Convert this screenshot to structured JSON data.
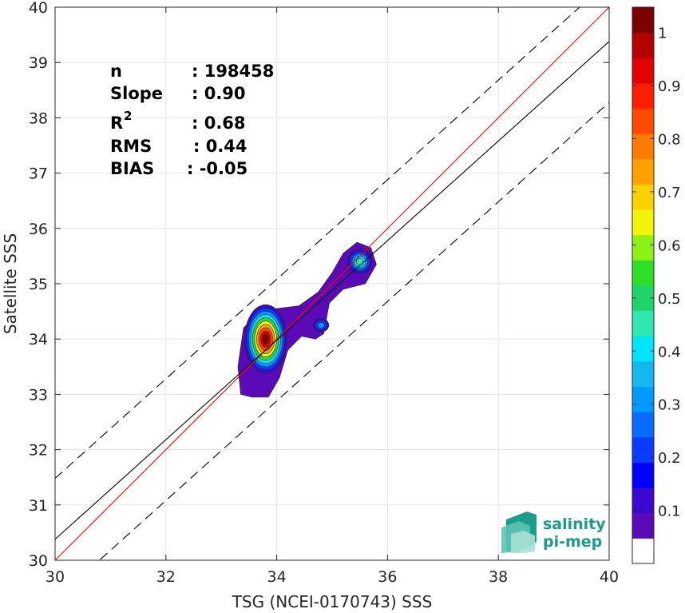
{
  "chart_data": {
    "type": "heatmap",
    "subtype": "density-scatter-contour",
    "xlabel": "TSG (NCEI-0170743) SSS",
    "ylabel": "Satellite SSS",
    "xlim": [
      30,
      40
    ],
    "ylim": [
      30,
      40
    ],
    "x_ticks": [
      30,
      32,
      34,
      36,
      38,
      40
    ],
    "y_ticks": [
      30,
      31,
      32,
      33,
      34,
      35,
      36,
      37,
      38,
      39,
      40
    ],
    "grid": true,
    "stats": {
      "n_label": "n",
      "n_value": ": 198458",
      "slope_label": "Slope",
      "slope_value": ": 0.90",
      "r2_label": "R",
      "r2_exp": "2",
      "r2_value": ": 0.68",
      "rms_label": "RMS",
      "rms_value": ": 0.44",
      "bias_label": "BIAS",
      "bias_value": ": -0.05"
    },
    "lines": [
      {
        "kind": "identity",
        "color": "#ff0000",
        "slope": 1.0,
        "intercept": 0.0
      },
      {
        "kind": "regression",
        "color": "#000000",
        "slope": 0.9,
        "intercept": 3.38
      },
      {
        "kind": "upper-bound-dashed",
        "color": "#000000",
        "slope": 0.9,
        "intercept": 4.48
      },
      {
        "kind": "lower-bound-dashed",
        "color": "#000000",
        "slope": 0.9,
        "intercept": 2.28
      }
    ],
    "density_peaks": [
      {
        "x": 33.8,
        "y": 34.0,
        "level": 1.0
      },
      {
        "x": 35.5,
        "y": 35.4,
        "level": 0.45
      },
      {
        "x": 34.8,
        "y": 34.25,
        "level": 0.3
      }
    ],
    "colorbar": {
      "ticks": [
        "0.1",
        "0.2",
        "0.3",
        "0.4",
        "0.5",
        "0.6",
        "0.7",
        "0.8",
        "0.9",
        "1"
      ],
      "colors": [
        "#ffffff",
        "#5b0ab8",
        "#3a08d0",
        "#0000ff",
        "#0a3cff",
        "#0a6cff",
        "#0099ff",
        "#15b8ee",
        "#00e5ff",
        "#2ee8b0",
        "#1fd46b",
        "#2fde2a",
        "#8ef014",
        "#f2f20a",
        "#ffd000",
        "#ffa200",
        "#ff7b00",
        "#ff4a00",
        "#ff1e00",
        "#e20000",
        "#b50000",
        "#7d0000"
      ]
    }
  },
  "logo": {
    "line1": "salinity",
    "line2": "pi-mep"
  }
}
